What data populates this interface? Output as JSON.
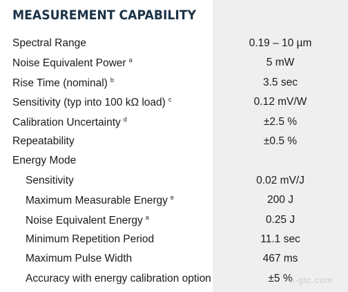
{
  "title": "MEASUREMENT CAPABILITY",
  "rows": [
    {
      "label": "Spectral Range",
      "note": "",
      "value": "0.19 – 10 µm"
    },
    {
      "label": "Noise Equivalent Power",
      "note": "a",
      "value": "5 mW"
    },
    {
      "label": "Rise Time (nominal)",
      "note": "b",
      "value": "3.5 sec"
    },
    {
      "label": "Sensitivity (typ into 100 kΩ load)",
      "note": "c",
      "value": "0.12 mV/W"
    },
    {
      "label": "Calibration Uncertainty",
      "note": "d",
      "value": "±2.5 %"
    },
    {
      "label": "Repeatability",
      "note": "",
      "value": "±0.5 %"
    },
    {
      "label": "Energy Mode",
      "note": "",
      "value": ""
    },
    {
      "label": "Sensitivity",
      "note": "",
      "value": "0.02 mV/J"
    },
    {
      "label": "Maximum Measurable Energy",
      "note": "e",
      "value": "200 J"
    },
    {
      "label": "Noise Equivalent Energy",
      "note": "a",
      "value": "0.25 J"
    },
    {
      "label": "Minimum Repetition Period",
      "note": "",
      "value": "11.1 sec"
    },
    {
      "label": "Maximum Pulse Width",
      "note": "",
      "value": "467 ms"
    },
    {
      "label": "Accuracy with energy calibration option",
      "note": "",
      "value": "±5 %"
    }
  ],
  "watermark": "e-gtc.com",
  "colors": {
    "title": "#1c3348",
    "value_column_bg": "#efefef",
    "text": "#1a1a1a"
  }
}
